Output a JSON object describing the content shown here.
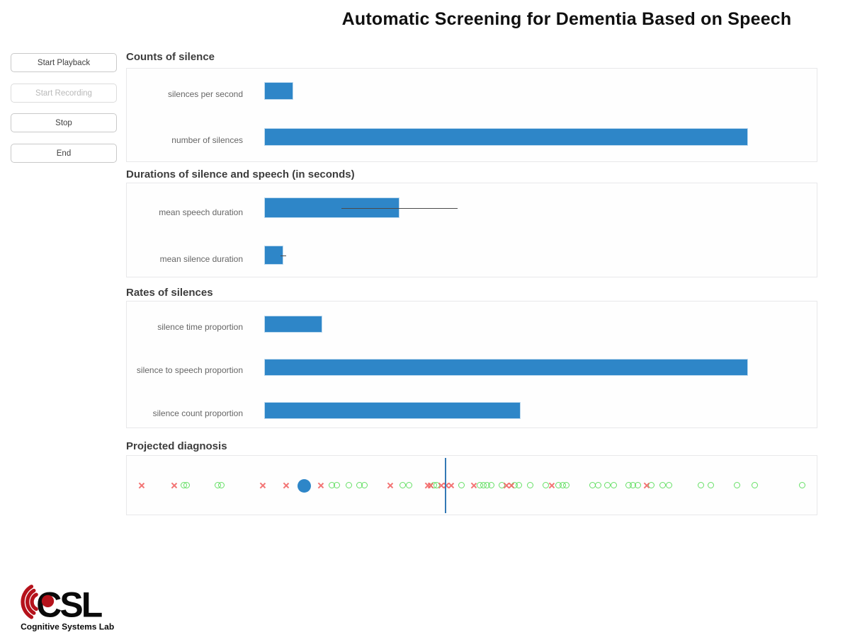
{
  "title": "Automatic Screening for Dementia Based on Speech",
  "sidebar": {
    "buttons": [
      {
        "label": "Start Playback",
        "enabled": true
      },
      {
        "label": "Start Recording",
        "enabled": false
      },
      {
        "label": "Stop",
        "enabled": true
      },
      {
        "label": "End",
        "enabled": true
      }
    ]
  },
  "colors": {
    "bar": "#2e86c8",
    "bar_border": "#bdd9ee",
    "error_bar": "#4a4a4a",
    "marker_x": "#f15e5e",
    "marker_o": "#57dd57",
    "current_sample_dot": "#2e86c8",
    "threshold_line": "#3379b5"
  },
  "chart_data": [
    {
      "type": "bar",
      "title": "Counts of silence",
      "orientation": "horizontal",
      "categories": [
        "silences per second",
        "number of silences"
      ],
      "values": [
        0.06,
        1.0
      ],
      "xlim": [
        0,
        1
      ],
      "grid": false,
      "axes_visible": false
    },
    {
      "type": "bar",
      "title": "Durations of silence and speech (in seconds)",
      "orientation": "horizontal",
      "categories": [
        "mean speech duration",
        "mean silence duration"
      ],
      "values": [
        0.28,
        0.04
      ],
      "errors": [
        0.12,
        0.006
      ],
      "xlim": [
        0,
        1
      ],
      "grid": false,
      "axes_visible": false
    },
    {
      "type": "bar",
      "title": "Rates of silences",
      "orientation": "horizontal",
      "categories": [
        "silence time proportion",
        "silence to speech proportion",
        "silence count proportion"
      ],
      "values": [
        0.12,
        1.0,
        0.53
      ],
      "xlim": [
        0,
        1
      ],
      "grid": false,
      "axes_visible": false
    },
    {
      "type": "scatter",
      "title": "Projected diagnosis",
      "xlim": [
        0,
        1
      ],
      "grid": false,
      "axes_visible": false,
      "threshold_x": 0.461,
      "series": [
        {
          "name": "green-circle-group",
          "marker": "o",
          "x": [
            0.083,
            0.087,
            0.132,
            0.138,
            0.298,
            0.305,
            0.322,
            0.338,
            0.345,
            0.4,
            0.41,
            0.446,
            0.45,
            0.486,
            0.512,
            0.517,
            0.523,
            0.529,
            0.544,
            0.563,
            0.569,
            0.585,
            0.608,
            0.626,
            0.632,
            0.638,
            0.676,
            0.684,
            0.697,
            0.706,
            0.728,
            0.734,
            0.741,
            0.761,
            0.777,
            0.786,
            0.833,
            0.847,
            0.885,
            0.911,
            0.979
          ]
        },
        {
          "name": "red-x-group",
          "marker": "x",
          "x": [
            0.021,
            0.069,
            0.197,
            0.231,
            0.281,
            0.382,
            0.436,
            0.44,
            0.456,
            0.463,
            0.47,
            0.503,
            0.55,
            0.557,
            0.616,
            0.753
          ]
        },
        {
          "name": "current-sample",
          "marker": "dot",
          "x": [
            0.257
          ]
        }
      ]
    }
  ],
  "logo": {
    "acronym": "CSL",
    "label": "Cognitive Systems Lab"
  }
}
